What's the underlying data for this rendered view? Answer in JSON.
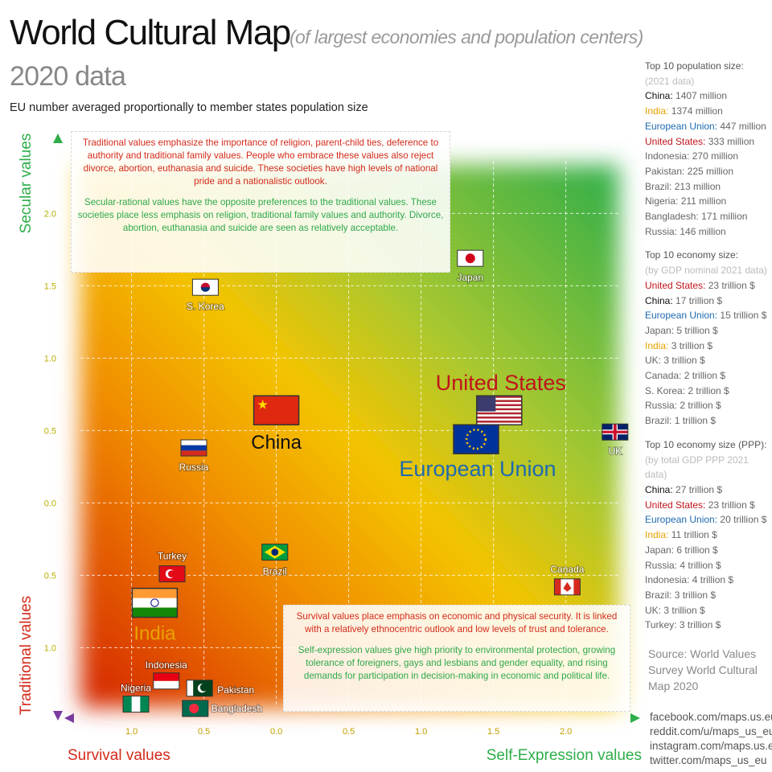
{
  "chart_data": {
    "type": "scatter",
    "title": "World Cultural Map",
    "title_note": "(of largest economies and population centers)",
    "subtitle": "2020 data",
    "note": "EU number averaged proportionally to member states population size",
    "y_label_top": "Secular values",
    "y_label_bottom": "Traditional values",
    "x_label_left": "Survival values",
    "x_label_right": "Self-Expression values",
    "xlim": [
      -1.42,
      2.48
    ],
    "ylim": [
      -1.47,
      2.53
    ],
    "xticks": [
      {
        "value": -1,
        "label": "1.0"
      },
      {
        "value": -0.5,
        "label": "0.5"
      },
      {
        "value": 0,
        "label": "0.0"
      },
      0.5,
      {
        "value": 1,
        "label": "1.0"
      },
      1.5,
      {
        "value": 2,
        "label": "2.0"
      }
    ],
    "yticks": [
      {
        "value": -1,
        "label": "1.0"
      },
      {
        "value": -0.5,
        "label": "0.5"
      },
      {
        "value": 0,
        "label": "0.0"
      },
      0.5,
      {
        "value": 1,
        "label": "1.0"
      },
      1.5,
      {
        "value": 2,
        "label": "2.0"
      }
    ],
    "grid": true,
    "points": [
      {
        "name": "Japan",
        "x": 1.34,
        "y": 1.69
      },
      {
        "name": "S. Korea",
        "x": -0.49,
        "y": 1.49
      },
      {
        "name": "China",
        "x": 0.0,
        "y": 0.64
      },
      {
        "name": "United States",
        "x": 1.54,
        "y": 0.64
      },
      {
        "name": "European Union",
        "x": 1.38,
        "y": 0.44
      },
      {
        "name": "UK",
        "x": 2.34,
        "y": 0.49
      },
      {
        "name": "Russia",
        "x": -0.57,
        "y": 0.38
      },
      {
        "name": "Brazil",
        "x": -0.01,
        "y": -0.34
      },
      {
        "name": "Turkey",
        "x": -0.72,
        "y": -0.49
      },
      {
        "name": "Canada",
        "x": 2.01,
        "y": -0.58
      },
      {
        "name": "India",
        "x": -0.84,
        "y": -0.69
      },
      {
        "name": "Indonesia",
        "x": -0.76,
        "y": -1.23
      },
      {
        "name": "Pakistan",
        "x": -0.53,
        "y": -1.28
      },
      {
        "name": "Nigeria",
        "x": -0.97,
        "y": -1.39
      },
      {
        "name": "Bangladesh",
        "x": -0.56,
        "y": -1.42
      }
    ],
    "annotations": [
      [
        "Traditional values emphasize the importance of religion, parent-child ties, deference to authority and traditional family values. People who embrace these values also reject divorce, abortion, euthanasia and suicide. These societies have high levels of national pride and a nationalistic outlook.",
        "Secular-rational values have the opposite preferences to the traditional values. These societies place less emphasis on religion, traditional family values and authority. Divorce, abortion, euthanasia and suicide are seen as relatively acceptable."
      ],
      [
        "Survival values place emphasis on economic and physical security. It is linked with a relatively ethnocentric outlook and low levels of trust and tolerance.",
        "Self-expression values give high priority to environmental protection, growing tolerance of foreigners, gays and lesbians and gender equality, and rising demands for participation in decision-making in economic and political life."
      ]
    ]
  },
  "sidebar": [
    {
      "title": "Top 10 population size:",
      "subtitle": "(2021 data)",
      "items": [
        {
          "name": "China:",
          "value": "1407 million",
          "color": "#111111"
        },
        {
          "name": "India:",
          "value": "1374 million",
          "color": "#e8a300"
        },
        {
          "name": "European Union:",
          "value": "447 million",
          "color": "#1f6ab0"
        },
        {
          "name": "United States:",
          "value": "333 million",
          "color": "#c0141c"
        },
        {
          "name": "Indonesia:",
          "value": "270 million",
          "color": "#666666"
        },
        {
          "name": "Pakistan:",
          "value": "225 million",
          "color": "#666666"
        },
        {
          "name": "Brazil:",
          "value": "213 million",
          "color": "#666666"
        },
        {
          "name": "Nigeria:",
          "value": "211 million",
          "color": "#666666"
        },
        {
          "name": "Bangladesh:",
          "value": "171 million",
          "color": "#666666"
        },
        {
          "name": "Russia:",
          "value": "146 million",
          "color": "#666666"
        }
      ]
    },
    {
      "title": "Top 10 economy size:",
      "subtitle": "(by GDP nominal 2021 data)",
      "items": [
        {
          "name": "United States:",
          "value": "23 trillion $",
          "color": "#c0141c"
        },
        {
          "name": "China:",
          "value": "17 trillion $",
          "color": "#111111"
        },
        {
          "name": "European Union:",
          "value": "15 trillion $",
          "color": "#1f6ab0"
        },
        {
          "name": "Japan:",
          "value": "5 trillion $",
          "color": "#666666"
        },
        {
          "name": "India:",
          "value": "3 trillion $",
          "color": "#e8a300"
        },
        {
          "name": "UK:",
          "value": "3 trillion $",
          "color": "#666666"
        },
        {
          "name": "Canada:",
          "value": "2 trillion $",
          "color": "#666666"
        },
        {
          "name": "S. Korea:",
          "value": "2 trillion $",
          "color": "#666666"
        },
        {
          "name": "Russia:",
          "value": "2 trillion $",
          "color": "#666666"
        },
        {
          "name": "Brazil:",
          "value": "1 trillion $",
          "color": "#666666"
        }
      ]
    },
    {
      "title": "Top 10 economy size (PPP):",
      "subtitle": "(by total GDP PPP 2021 data)",
      "items": [
        {
          "name": "China:",
          "value": "27 trillion $",
          "color": "#111111"
        },
        {
          "name": "United States:",
          "value": "23 trillion $",
          "color": "#c0141c"
        },
        {
          "name": "European Union:",
          "value": "20 trillion $",
          "color": "#1f6ab0"
        },
        {
          "name": "India:",
          "value": "11 trillion $",
          "color": "#e8a300"
        },
        {
          "name": "Japan:",
          "value": "6 trillion $",
          "color": "#666666"
        },
        {
          "name": "Russia:",
          "value": "4 trillion $",
          "color": "#666666"
        },
        {
          "name": "Indonesia:",
          "value": "4 trillion $",
          "color": "#666666"
        },
        {
          "name": "Brazil:",
          "value": "3 trillion $",
          "color": "#666666"
        },
        {
          "name": "UK:",
          "value": "3 trillion $",
          "color": "#666666"
        },
        {
          "name": "Turkey:",
          "value": "3 trillion $",
          "color": "#666666"
        }
      ]
    }
  ],
  "source": [
    "Source: World Values",
    "Survey World Cultural",
    "Map 2020"
  ],
  "links": [
    "facebook.com/maps.us.eu",
    "reddit.com/u/maps_us_eu",
    "instagram.com/maps.us.eu",
    "twitter.com/maps_us_eu"
  ]
}
